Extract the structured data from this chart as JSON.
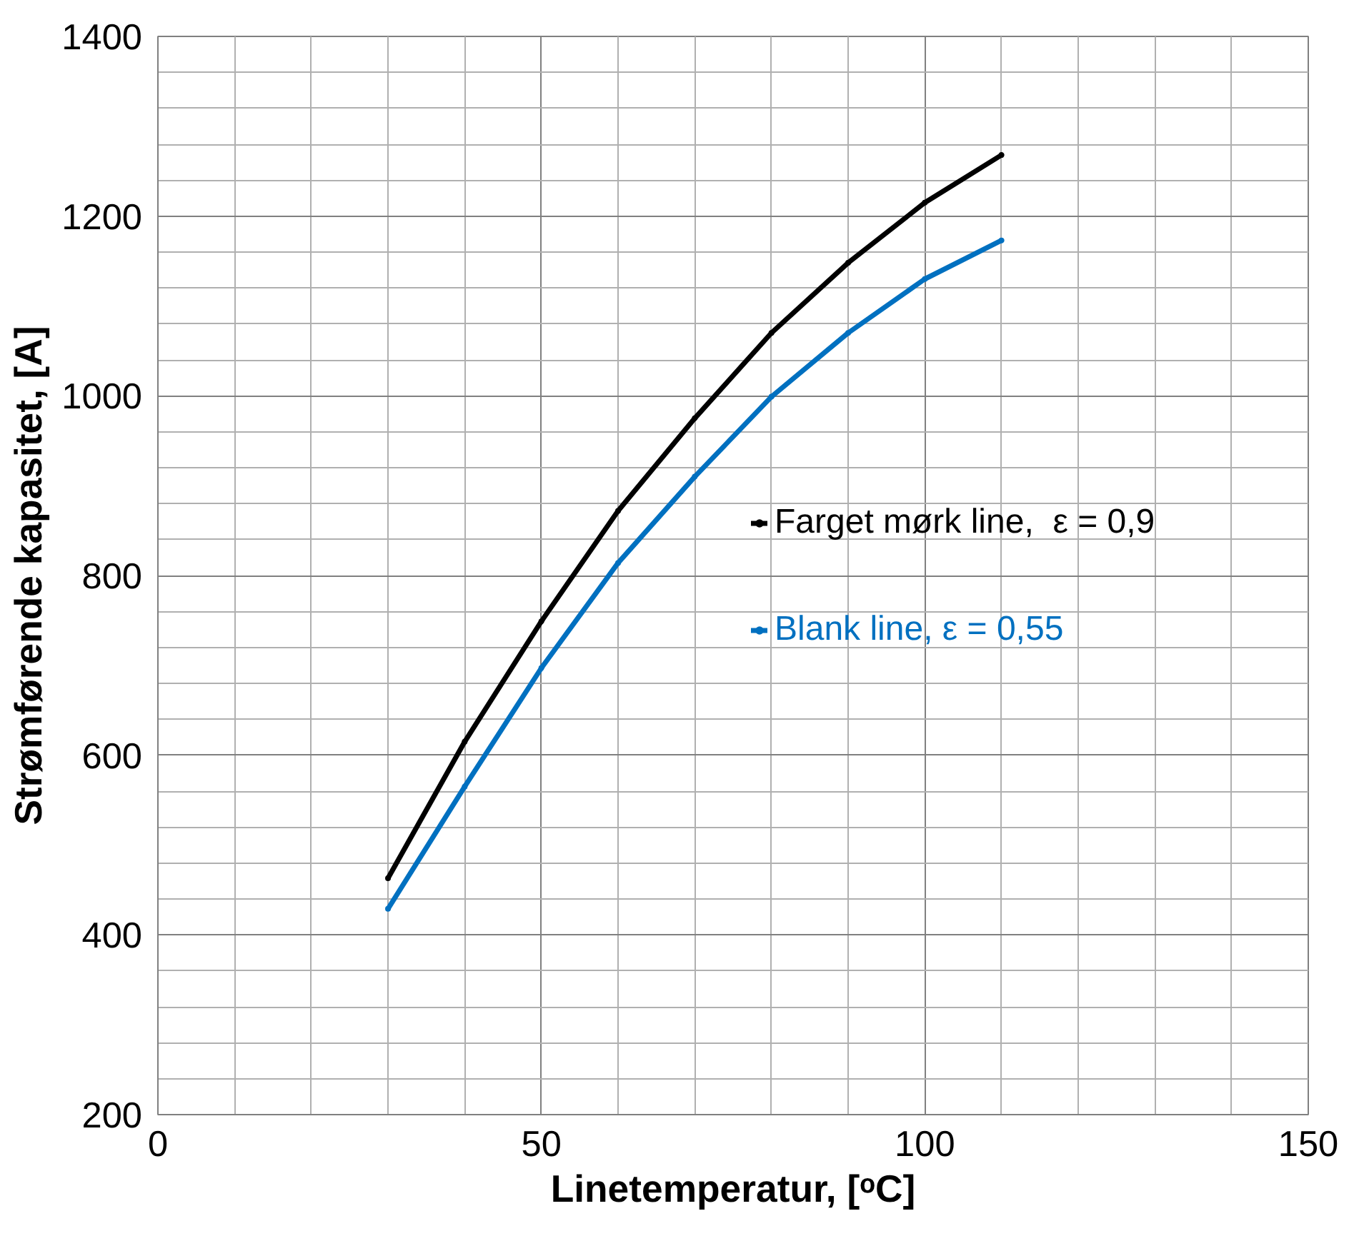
{
  "chart_data": {
    "type": "line",
    "xlabel": "Linetemperatur, [ᵒC]",
    "ylabel": "Strømførende kapasitet, [A]",
    "x": [
      30,
      40,
      50,
      60,
      70,
      80,
      90,
      100,
      110
    ],
    "series": [
      {
        "name": "Farget mørk line,  ε = 0,9",
        "color": "#000000",
        "values": [
          463,
          615,
          749,
          872,
          975,
          1070,
          1148,
          1215,
          1268
        ]
      },
      {
        "name": "Blank line, ε = 0,55",
        "color": "#0070c0",
        "values": [
          429,
          565,
          697,
          814,
          910,
          999,
          1070,
          1130,
          1173
        ]
      }
    ],
    "xlim": [
      0,
      150
    ],
    "xticks": [
      0,
      50,
      100,
      150
    ],
    "ylim": [
      200,
      1400
    ],
    "yticks": [
      200,
      400,
      600,
      800,
      1000,
      1200,
      1400
    ],
    "grid": true,
    "legend": "right",
    "marker": "circle",
    "line_style": "solid"
  }
}
